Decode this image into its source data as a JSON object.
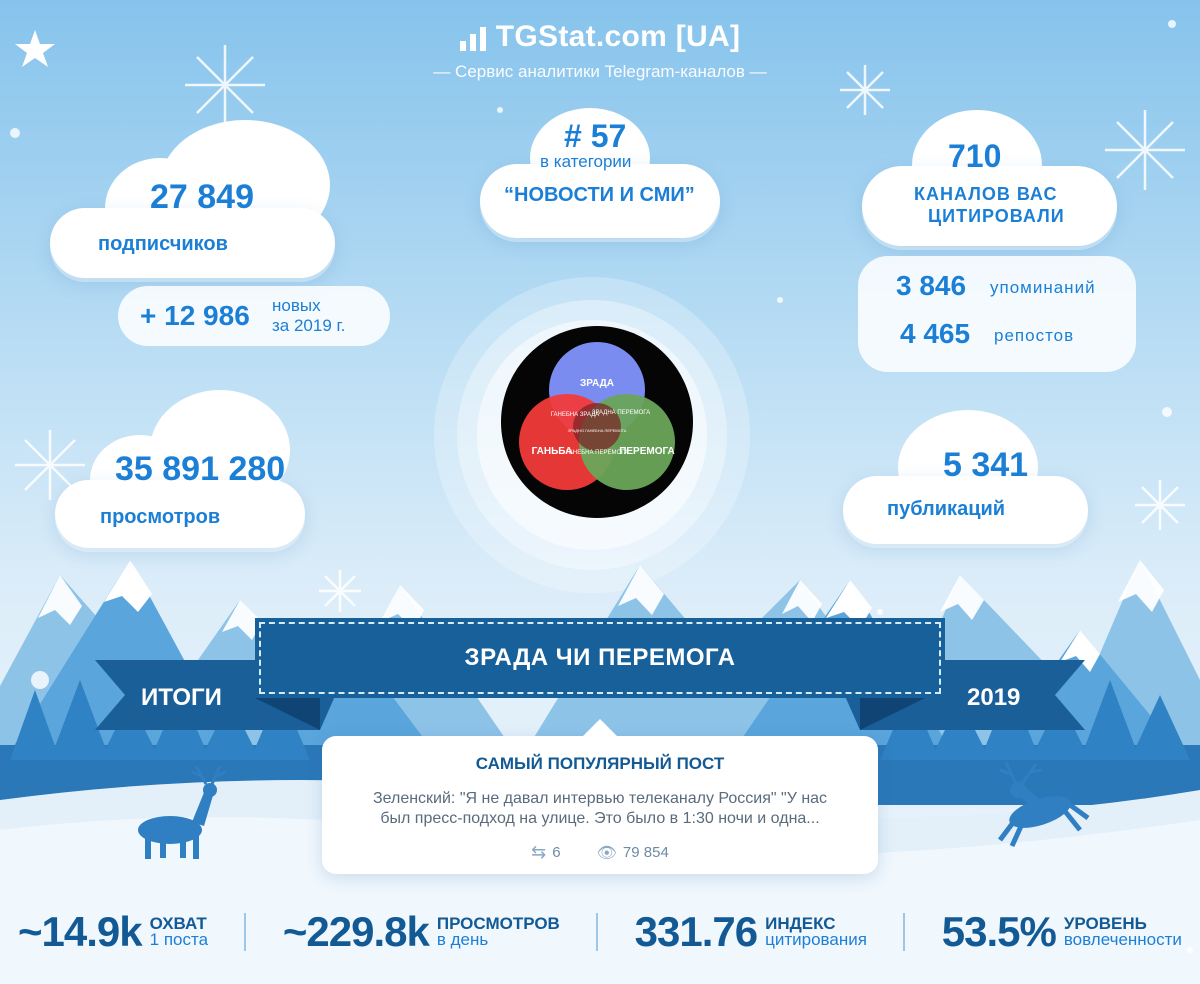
{
  "header": {
    "title": "TGStat.com [UA]",
    "subtitle": "— Сервис аналитики Telegram-каналов —"
  },
  "subscribers": {
    "value": "27 849",
    "label": "подписчиков"
  },
  "new_subs": {
    "value": "+ 12 986",
    "label_line1": "новых",
    "label_line2": "за 2019 г."
  },
  "views": {
    "value": "35 891 280",
    "label": "просмотров"
  },
  "rank": {
    "value": "# 57",
    "line1": "в категории",
    "line2": "“НОВОСТИ И СМИ”"
  },
  "cited": {
    "value": "710",
    "line1": "КАНАЛОВ ВАС",
    "line2": "ЦИТИРОВАЛИ"
  },
  "mentions": {
    "value": "3 846",
    "label": "упоминаний"
  },
  "reposts": {
    "value": "4 465",
    "label": "репостов"
  },
  "publications": {
    "value": "5 341",
    "label": "публикаций"
  },
  "venn": {
    "circle_a": "ЗРАДА",
    "circle_b": "ГАНЬБА",
    "circle_c": "ПЕРЕМОГА",
    "ab": "ГАНЕБНА ЗРАДА",
    "ac": "ЗРАДНА ПЕРЕМОГА",
    "bc": "ГАНЕБНА ПЕРЕМОГА",
    "center": "ЗРАДНО ГАНЕБНА ПЕРЕМОГА",
    "colors": {
      "a": "#7b8cf0",
      "b": "#f23a3a",
      "c": "#6aa55a",
      "bg": "#050505"
    }
  },
  "banner": {
    "title": "ЗРАДА ЧИ ПЕРЕМОГА",
    "left": "ИТОГИ",
    "right": "2019"
  },
  "post": {
    "heading": "САМЫЙ ПОПУЛЯРНЫЙ ПОСТ",
    "text_line1": "Зеленский: \"Я не давал интервью телеканалу Россия\" \"У нас",
    "text_line2": "был пресс-подход на улице. Это было в 1:30 ночи и одна...",
    "reposts": "6",
    "views": "79 854"
  },
  "stats": [
    {
      "value": "~14.9k",
      "line1": "ОХВАТ",
      "line2": "1 поста"
    },
    {
      "value": "~229.8k",
      "line1": "ПРОСМОТРОВ",
      "line2": "в день"
    },
    {
      "value": "331.76",
      "line1": "ИНДЕКС",
      "line2": "цитирования"
    },
    {
      "value": "53.5%",
      "line1": "УРОВЕНЬ",
      "line2": "вовлеченности"
    }
  ],
  "icons": [
    "chart-logo-icon",
    "snowflake-icon",
    "star-icon",
    "repost-icon",
    "eye-icon",
    "deer-icon",
    "mountain-icon",
    "tree-icon"
  ]
}
